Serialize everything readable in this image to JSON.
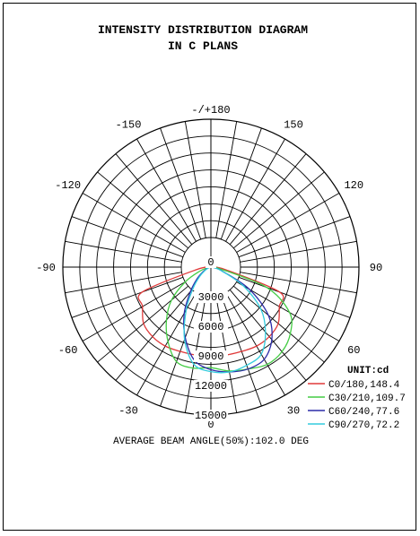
{
  "chart_data": {
    "type": "polar",
    "title_lines": [
      "INTENSITY DISTRIBUTION DIAGRAM",
      "IN C PLANS"
    ],
    "unit": "UNIT:cd",
    "angle_labels": [
      {
        "deg": 180,
        "text": "-/+180"
      },
      {
        "deg": 150,
        "text": "150"
      },
      {
        "deg": 120,
        "text": "120"
      },
      {
        "deg": 90,
        "text": "90"
      },
      {
        "deg": 60,
        "text": "60"
      },
      {
        "deg": 30,
        "text": "30"
      },
      {
        "deg": 0,
        "text": "0"
      },
      {
        "deg": -30,
        "text": "-30"
      },
      {
        "deg": -60,
        "text": "-60"
      },
      {
        "deg": -90,
        "text": "-90"
      },
      {
        "deg": -120,
        "text": "-120"
      },
      {
        "deg": -150,
        "text": "-150"
      }
    ],
    "radial_ticks": [
      0,
      3000,
      6000,
      9000,
      12000,
      15000
    ],
    "radial_tick_labels": [
      "0",
      "3000",
      "6000",
      "9000",
      "12000",
      "15000"
    ],
    "r_max": 15000,
    "angle_step_deg": 10,
    "series": [
      {
        "name": "C0/180,148.4",
        "color": "#e03a3a",
        "angles": [
          -90,
          -80,
          -70,
          -60,
          -50,
          -40,
          -30,
          -20,
          -10,
          0,
          10,
          20,
          30,
          40,
          50,
          60,
          70,
          80,
          90
        ],
        "values": [
          0,
          1500,
          7400,
          8000,
          8900,
          9200,
          9250,
          9100,
          9050,
          9000,
          9050,
          9100,
          9250,
          9200,
          8900,
          8000,
          7400,
          1500,
          0
        ]
      },
      {
        "name": "C30/210,109.7",
        "color": "#44cc44",
        "angles": [
          -90,
          -80,
          -70,
          -60,
          -50,
          -40,
          -30,
          -20,
          -10,
          0,
          10,
          20,
          30,
          40,
          50,
          60,
          70,
          80,
          90
        ],
        "values": [
          0,
          300,
          1200,
          3000,
          5200,
          7000,
          8700,
          10200,
          10400,
          10200,
          10700,
          11000,
          11400,
          11200,
          10500,
          9200,
          6000,
          900,
          0
        ]
      },
      {
        "name": "C60/240,77.6",
        "color": "#2c2ca8",
        "angles": [
          -90,
          -80,
          -70,
          -60,
          -50,
          -40,
          -30,
          -20,
          -10,
          0,
          10,
          20,
          30,
          40,
          50,
          60,
          70,
          80,
          90
        ],
        "values": [
          0,
          100,
          400,
          900,
          1800,
          3200,
          5400,
          7600,
          9600,
          10400,
          10800,
          11000,
          10800,
          9600,
          7600,
          4500,
          1300,
          300,
          0
        ]
      },
      {
        "name": "C90/270,72.2",
        "color": "#33ccdd",
        "angles": [
          -90,
          -80,
          -70,
          -60,
          -50,
          -40,
          -30,
          -20,
          -10,
          0,
          10,
          20,
          30,
          40,
          50,
          60,
          70,
          80,
          90
        ],
        "values": [
          0,
          100,
          300,
          700,
          1500,
          2800,
          5000,
          7800,
          10000,
          10600,
          10800,
          10600,
          10200,
          8600,
          6600,
          3800,
          1200,
          300,
          0
        ]
      }
    ],
    "footer": "AVERAGE BEAM ANGLE(50%):102.0 DEG"
  }
}
